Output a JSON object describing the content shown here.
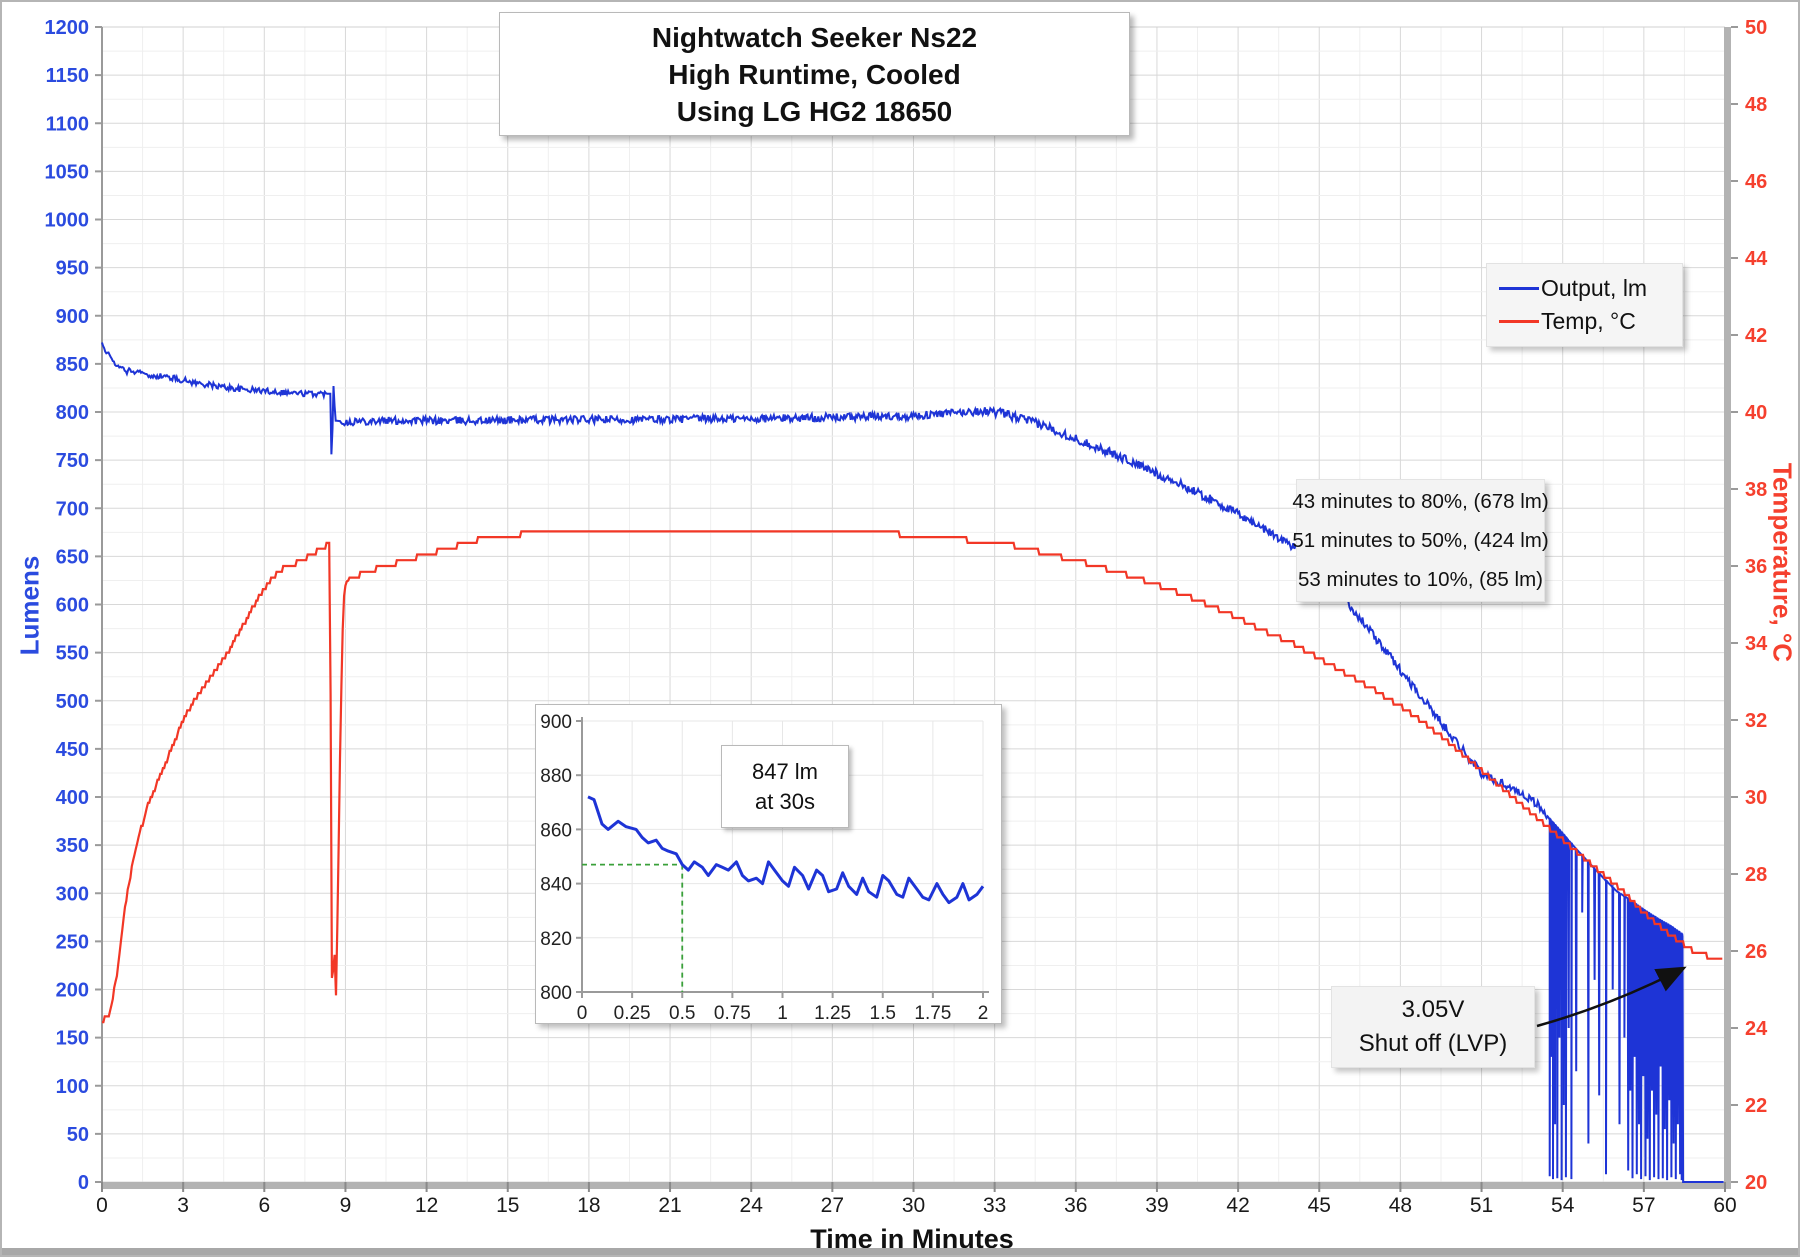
{
  "title": {
    "line1": "Nightwatch Seeker Ns22",
    "line2": "High Runtime, Cooled",
    "line3": "Using LG HG2 18650"
  },
  "legend": {
    "items": [
      {
        "label": "Output, lm",
        "color": "#1e34d6"
      },
      {
        "label": "Temp, °C",
        "color": "#f23726"
      }
    ]
  },
  "annotations": {
    "runtime_box": {
      "line1": "43 minutes to 80%, (678 lm)",
      "line2": "51 minutes to 50%, (424 lm)",
      "line3": "53 minutes to 10%, (85 lm)"
    },
    "lvp_box": {
      "line1": "3.05V",
      "line2": "Shut off (LVP)"
    },
    "inset_callout": {
      "line1": "847 lm",
      "line2": "at 30s"
    }
  },
  "chart_data": {
    "type": "line",
    "title": "Nightwatch Seeker Ns22 High Runtime, Cooled Using LG HG2 18650",
    "grid": true,
    "legend_position": "right",
    "axes": {
      "x": {
        "title": "Time in Minutes",
        "min": 0,
        "max": 60,
        "major": 3,
        "minor": 1.5,
        "tick_labels": [
          0,
          3,
          6,
          9,
          12,
          15,
          18,
          21,
          24,
          27,
          30,
          33,
          36,
          39,
          42,
          45,
          48,
          51,
          54,
          57,
          60
        ],
        "label_color": "#1a1a1a"
      },
      "y_left": {
        "title": "Lumens",
        "min": 0,
        "max": 1200,
        "major": 50,
        "minor": 25,
        "color": "#2b4bdf"
      },
      "y_right": {
        "title": "Temperature, °C",
        "min": 20,
        "max": 50,
        "major": 2,
        "color": "#f5402e"
      }
    },
    "series": [
      {
        "name": "Output, lm",
        "axis": "left",
        "color": "#1e34d6",
        "keypoints": [
          [
            0,
            872
          ],
          [
            0.08,
            865
          ],
          [
            0.15,
            860
          ],
          [
            0.25,
            862
          ],
          [
            0.35,
            857
          ],
          [
            0.5,
            847
          ],
          [
            0.6,
            849
          ],
          [
            0.7,
            845
          ],
          [
            0.8,
            846
          ],
          [
            0.9,
            840
          ],
          [
            1.0,
            844
          ],
          [
            1.2,
            841
          ],
          [
            1.4,
            843
          ],
          [
            1.6,
            839
          ],
          [
            1.8,
            836
          ],
          [
            2.0,
            838
          ],
          [
            2.5,
            836
          ],
          [
            3,
            833
          ],
          [
            3.5,
            830
          ],
          [
            4,
            828
          ],
          [
            4.5,
            826
          ],
          [
            5,
            824
          ],
          [
            5.5,
            823
          ],
          [
            6,
            822
          ],
          [
            6.5,
            821
          ],
          [
            7,
            820
          ],
          [
            7.5,
            819
          ],
          [
            8,
            819
          ],
          [
            8.44,
            819
          ],
          [
            8.47,
            760
          ],
          [
            8.5,
            748
          ],
          [
            8.53,
            800
          ],
          [
            8.56,
            827
          ],
          [
            8.6,
            806
          ],
          [
            8.64,
            791
          ],
          [
            9,
            790
          ],
          [
            10,
            791
          ],
          [
            12,
            791
          ],
          [
            14,
            791
          ],
          [
            16,
            792
          ],
          [
            18,
            792
          ],
          [
            20,
            792
          ],
          [
            22,
            793
          ],
          [
            24,
            793
          ],
          [
            26,
            794
          ],
          [
            28,
            795
          ],
          [
            30,
            796
          ],
          [
            31,
            798
          ],
          [
            32,
            800
          ],
          [
            32.7,
            801
          ],
          [
            33.2,
            799
          ],
          [
            34,
            793
          ],
          [
            35,
            784
          ],
          [
            36,
            772
          ],
          [
            37,
            761
          ],
          [
            38,
            749
          ],
          [
            39,
            736
          ],
          [
            40,
            723
          ],
          [
            41,
            709
          ],
          [
            42,
            694
          ],
          [
            43,
            678
          ],
          [
            44,
            661
          ],
          [
            45,
            641
          ],
          [
            46,
            604
          ],
          [
            47,
            568
          ],
          [
            48,
            532
          ],
          [
            49,
            496
          ],
          [
            50,
            460
          ],
          [
            51,
            424
          ],
          [
            52,
            411
          ],
          [
            52.5,
            404
          ],
          [
            53,
            394
          ],
          [
            53.5,
            378
          ],
          [
            54,
            362
          ],
          [
            54.5,
            346
          ],
          [
            55,
            331
          ],
          [
            55.5,
            316
          ],
          [
            56,
            302
          ],
          [
            56.5,
            293
          ],
          [
            57,
            283
          ],
          [
            57.5,
            274
          ],
          [
            58,
            266
          ],
          [
            58.4,
            258
          ],
          [
            58.44,
            255
          ]
        ],
        "oscillation_spikes": [
          [
            53.52,
            6
          ],
          [
            53.58,
            130
          ],
          [
            53.64,
            3
          ],
          [
            53.72,
            60
          ],
          [
            53.8,
            4
          ],
          [
            53.88,
            150
          ],
          [
            53.96,
            2
          ],
          [
            54.04,
            80
          ],
          [
            54.12,
            5
          ],
          [
            54.22,
            160
          ],
          [
            54.32,
            3
          ],
          [
            54.5,
            115
          ],
          [
            54.72,
            280
          ],
          [
            54.95,
            40
          ],
          [
            55.18,
            210
          ],
          [
            55.35,
            90
          ],
          [
            55.6,
            8
          ],
          [
            55.85,
            200
          ],
          [
            56.1,
            60
          ],
          [
            56.28,
            150
          ],
          [
            56.42,
            12
          ],
          [
            56.5,
            95
          ],
          [
            56.58,
            4
          ],
          [
            56.66,
            130
          ],
          [
            56.74,
            8
          ],
          [
            56.82,
            60
          ],
          [
            56.9,
            3
          ],
          [
            56.98,
            110
          ],
          [
            57.06,
            6
          ],
          [
            57.14,
            45
          ],
          [
            57.22,
            2
          ],
          [
            57.3,
            95
          ],
          [
            57.38,
            5
          ],
          [
            57.46,
            70
          ],
          [
            57.54,
            3
          ],
          [
            57.62,
            120
          ],
          [
            57.7,
            4
          ],
          [
            57.78,
            55
          ],
          [
            57.86,
            2
          ],
          [
            57.94,
            85
          ],
          [
            58.02,
            5
          ],
          [
            58.1,
            40
          ],
          [
            58.18,
            3
          ],
          [
            58.26,
            60
          ],
          [
            58.34,
            8
          ],
          [
            58.4,
            2
          ]
        ],
        "shutoff_time": 58.45,
        "end_time": 59.95
      },
      {
        "name": "Temp, °C",
        "axis": "right",
        "color": "#f23726",
        "keypoints": [
          [
            0,
            24.2
          ],
          [
            0.25,
            24.3
          ],
          [
            0.4,
            24.8
          ],
          [
            0.55,
            25.4
          ],
          [
            0.7,
            26.3
          ],
          [
            0.85,
            27.1
          ],
          [
            1.0,
            27.8
          ],
          [
            1.15,
            28.3
          ],
          [
            1.3,
            28.8
          ],
          [
            1.5,
            29.3
          ],
          [
            1.7,
            29.8
          ],
          [
            2.0,
            30.3
          ],
          [
            2.3,
            30.8
          ],
          [
            2.6,
            31.3
          ],
          [
            3.0,
            32.0
          ],
          [
            3.4,
            32.5
          ],
          [
            3.8,
            32.9
          ],
          [
            4.2,
            33.3
          ],
          [
            4.6,
            33.7
          ],
          [
            5.0,
            34.2
          ],
          [
            5.4,
            34.7
          ],
          [
            5.8,
            35.2
          ],
          [
            6.2,
            35.6
          ],
          [
            6.6,
            35.9
          ],
          [
            7.0,
            36.0
          ],
          [
            7.5,
            36.2
          ],
          [
            8.0,
            36.4
          ],
          [
            8.42,
            36.6
          ],
          [
            8.47,
            30.0
          ],
          [
            8.5,
            25.3
          ],
          [
            8.54,
            25.1
          ],
          [
            8.58,
            26.8
          ],
          [
            8.62,
            25.0
          ],
          [
            8.66,
            24.8
          ],
          [
            8.72,
            27.5
          ],
          [
            8.8,
            31.0
          ],
          [
            8.88,
            34.0
          ],
          [
            8.96,
            35.4
          ],
          [
            9.05,
            35.6
          ],
          [
            9.3,
            35.7
          ],
          [
            9.6,
            35.8
          ],
          [
            10,
            35.9
          ],
          [
            11,
            36.1
          ],
          [
            12,
            36.3
          ],
          [
            13,
            36.5
          ],
          [
            14,
            36.7
          ],
          [
            15,
            36.8
          ],
          [
            16,
            36.85
          ],
          [
            17,
            36.9
          ],
          [
            19,
            36.9
          ],
          [
            21,
            36.9
          ],
          [
            23,
            36.9
          ],
          [
            25,
            36.9
          ],
          [
            27,
            36.9
          ],
          [
            29,
            36.85
          ],
          [
            31,
            36.75
          ],
          [
            33,
            36.6
          ],
          [
            34,
            36.5
          ],
          [
            35,
            36.3
          ],
          [
            36,
            36.15
          ],
          [
            37,
            35.95
          ],
          [
            38,
            35.75
          ],
          [
            39,
            35.5
          ],
          [
            40,
            35.25
          ],
          [
            41,
            34.95
          ],
          [
            42,
            34.65
          ],
          [
            43,
            34.3
          ],
          [
            44,
            34.0
          ],
          [
            45,
            33.6
          ],
          [
            46,
            33.2
          ],
          [
            47,
            32.8
          ],
          [
            48,
            32.35
          ],
          [
            49,
            31.85
          ],
          [
            50,
            31.3
          ],
          [
            51,
            30.7
          ],
          [
            52,
            30.1
          ],
          [
            53,
            29.5
          ],
          [
            54,
            28.9
          ],
          [
            55,
            28.3
          ],
          [
            56,
            27.7
          ],
          [
            57,
            27.0
          ],
          [
            58,
            26.4
          ],
          [
            58.8,
            26.0
          ],
          [
            59.6,
            25.8
          ],
          [
            59.9,
            25.85
          ]
        ]
      }
    ],
    "inset": {
      "axes": {
        "x": {
          "min": 0,
          "max": 2,
          "major": 0.25,
          "tick_labels": [
            "0",
            "0.25",
            "0.5",
            "0.75",
            "1",
            "1.25",
            "1.5",
            "1.75",
            "2"
          ]
        },
        "y": {
          "min": 800,
          "max": 900,
          "major": 20,
          "tick_labels": [
            800,
            820,
            840,
            860,
            880,
            900
          ]
        }
      },
      "marker": {
        "x": 0.5,
        "y": 847,
        "color": "#3aa03a"
      },
      "series": {
        "name": "Output, lm (first 2 minutes)",
        "color": "#1e34d6",
        "points": [
          [
            0.03,
            872
          ],
          [
            0.06,
            871
          ],
          [
            0.1,
            862
          ],
          [
            0.13,
            860
          ],
          [
            0.18,
            863
          ],
          [
            0.22,
            861
          ],
          [
            0.27,
            860
          ],
          [
            0.3,
            857
          ],
          [
            0.33,
            855
          ],
          [
            0.37,
            856
          ],
          [
            0.4,
            853
          ],
          [
            0.43,
            852
          ],
          [
            0.47,
            851
          ],
          [
            0.5,
            847
          ],
          [
            0.53,
            845
          ],
          [
            0.56,
            848
          ],
          [
            0.6,
            846
          ],
          [
            0.63,
            843
          ],
          [
            0.67,
            847
          ],
          [
            0.7,
            846
          ],
          [
            0.73,
            845
          ],
          [
            0.77,
            848
          ],
          [
            0.8,
            843
          ],
          [
            0.83,
            841
          ],
          [
            0.87,
            842
          ],
          [
            0.9,
            840
          ],
          [
            0.93,
            848
          ],
          [
            0.96,
            845
          ],
          [
            1.0,
            841
          ],
          [
            1.03,
            839
          ],
          [
            1.06,
            846
          ],
          [
            1.1,
            843
          ],
          [
            1.13,
            838
          ],
          [
            1.17,
            845
          ],
          [
            1.2,
            843
          ],
          [
            1.23,
            837
          ],
          [
            1.27,
            838
          ],
          [
            1.3,
            844
          ],
          [
            1.33,
            839
          ],
          [
            1.37,
            836
          ],
          [
            1.4,
            842
          ],
          [
            1.43,
            837
          ],
          [
            1.47,
            835
          ],
          [
            1.5,
            843
          ],
          [
            1.53,
            841
          ],
          [
            1.57,
            836
          ],
          [
            1.6,
            835
          ],
          [
            1.63,
            842
          ],
          [
            1.67,
            838
          ],
          [
            1.7,
            835
          ],
          [
            1.73,
            834
          ],
          [
            1.77,
            840
          ],
          [
            1.8,
            836
          ],
          [
            1.83,
            833
          ],
          [
            1.87,
            835
          ],
          [
            1.9,
            840
          ],
          [
            1.93,
            834
          ],
          [
            1.97,
            836
          ],
          [
            2.0,
            839
          ]
        ]
      }
    }
  }
}
